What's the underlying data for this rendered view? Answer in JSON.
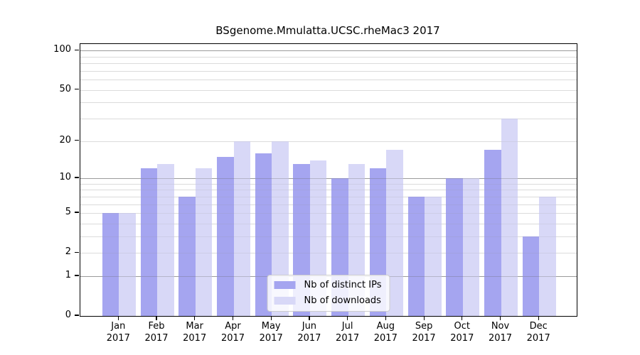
{
  "chart_data": {
    "type": "bar",
    "title": "BSgenome.Mmulatta.UCSC.rheMac3 2017",
    "categories": [
      "Jan 2017",
      "Feb 2017",
      "Mar 2017",
      "Apr 2017",
      "May 2017",
      "Jun 2017",
      "Jul 2017",
      "Aug 2017",
      "Sep 2017",
      "Oct 2017",
      "Nov 2017",
      "Dec 2017"
    ],
    "series": [
      {
        "name": "Nb of distinct IPs",
        "color": "#a5a5f0",
        "values": [
          5,
          12,
          7,
          15,
          16,
          13,
          10,
          12,
          7,
          10,
          17,
          3
        ]
      },
      {
        "name": "Nb of downloads",
        "color": "#d8d8f7",
        "values": [
          5,
          13,
          12,
          20,
          20,
          14,
          13,
          17,
          7,
          10,
          30,
          7
        ]
      }
    ],
    "xlabel": "",
    "ylabel": "",
    "yscale": "log1p",
    "ylim": [
      0,
      112
    ],
    "y_ticks": [
      0,
      1,
      2,
      5,
      10,
      20,
      50,
      100
    ],
    "y_major_gridlines": [
      1,
      10,
      100
    ],
    "y_minor_gridlines": [
      2,
      3,
      4,
      5,
      6,
      7,
      8,
      9,
      20,
      30,
      40,
      50,
      60,
      70,
      80,
      90
    ],
    "grid": true,
    "legend": {
      "position": "lower center"
    }
  },
  "colors": {
    "background": "#ffffff",
    "axis": "#000000",
    "grid_major": "#b3b3b3",
    "grid_minor": "#e9e9e9",
    "legend_border": "#cccccc"
  }
}
